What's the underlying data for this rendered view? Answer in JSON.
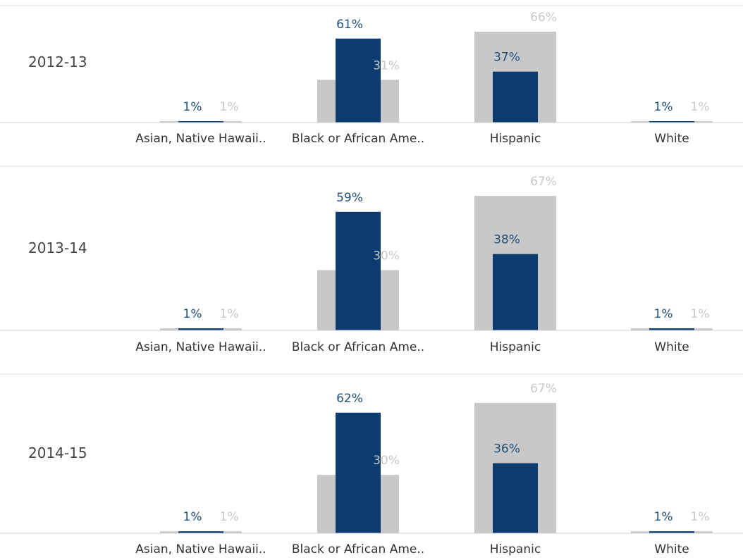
{
  "chart_data": [
    {
      "type": "bar",
      "title": "2012-13",
      "categories": [
        "Asian, Native Hawaii..",
        "Black or African Ame..",
        "Hispanic",
        "White"
      ],
      "series": [
        {
          "color": "#c8c8c8",
          "values": [
            1,
            31,
            66,
            1
          ],
          "value_labels": [
            "1%",
            "31%",
            "66%",
            "1%"
          ]
        },
        {
          "color": "#0b3b6f",
          "values": [
            1,
            61,
            37,
            1
          ],
          "value_labels": [
            "1%",
            "61%",
            "37%",
            "1%"
          ]
        }
      ]
    },
    {
      "type": "bar",
      "title": "2013-14",
      "categories": [
        "Asian, Native Hawaii..",
        "Black or African Ame..",
        "Hispanic",
        "White"
      ],
      "series": [
        {
          "color": "#c8c8c8",
          "values": [
            1,
            30,
            67,
            1
          ],
          "value_labels": [
            "1%",
            "30%",
            "67%",
            "1%"
          ]
        },
        {
          "color": "#0b3b6f",
          "values": [
            1,
            59,
            38,
            1
          ],
          "value_labels": [
            "1%",
            "59%",
            "38%",
            "1%"
          ]
        }
      ]
    },
    {
      "type": "bar",
      "title": "2014-15",
      "categories": [
        "Asian, Native Hawaii..",
        "Black or African Ame..",
        "Hispanic",
        "White"
      ],
      "series": [
        {
          "color": "#c8c8c8",
          "values": [
            1,
            30,
            67,
            1
          ],
          "value_labels": [
            "1%",
            "30%",
            "67%",
            "1%"
          ]
        },
        {
          "color": "#0b3b6f",
          "values": [
            1,
            62,
            36,
            1
          ],
          "value_labels": [
            "1%",
            "62%",
            "36%",
            "1%"
          ]
        }
      ]
    }
  ]
}
